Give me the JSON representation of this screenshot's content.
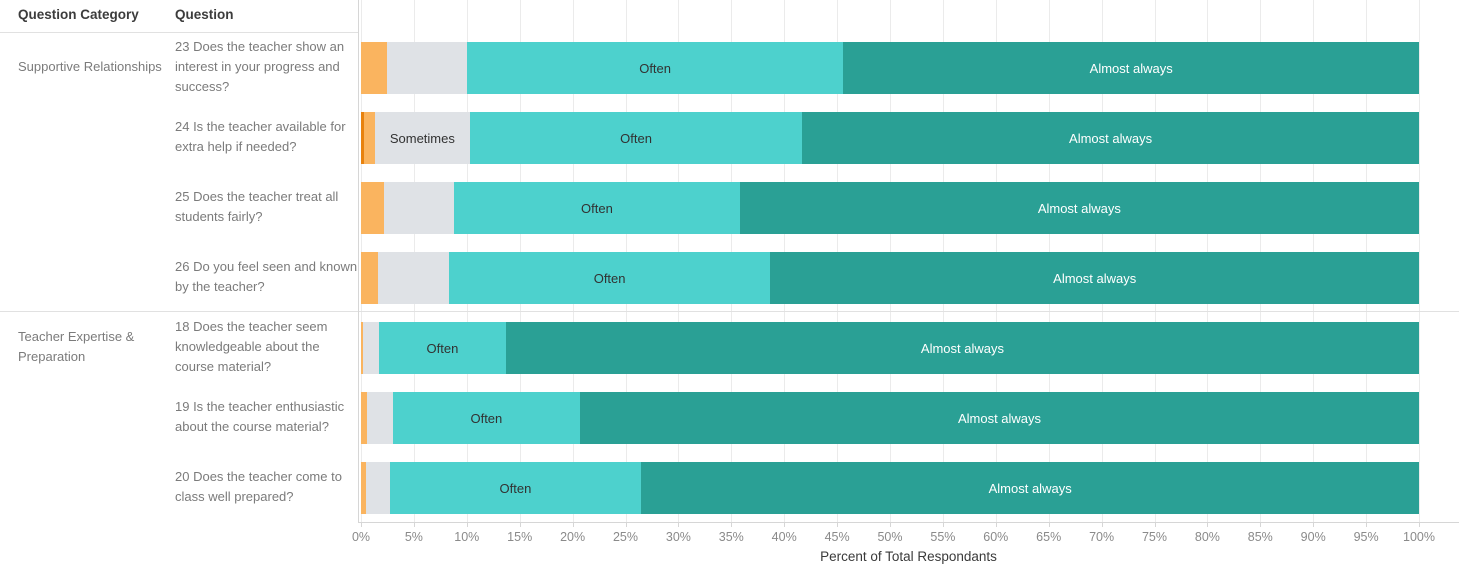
{
  "header": {
    "col1": "Question Category",
    "col2": "Question"
  },
  "chart_data": {
    "type": "bar",
    "subtype": "horizontal_stacked_100pct",
    "title": "",
    "xlabel": "Percent of Total Respondants",
    "ylabel": "",
    "xlim": [
      0,
      100
    ],
    "grid": true,
    "axis": {
      "title": "Percent of Total Respondants",
      "ticks": [
        "0%",
        "5%",
        "10%",
        "15%",
        "20%",
        "25%",
        "30%",
        "35%",
        "40%",
        "45%",
        "50%",
        "55%",
        "60%",
        "65%",
        "70%",
        "75%",
        "80%",
        "85%",
        "90%",
        "95%",
        "100%"
      ]
    },
    "palette": {
      "dark_orange": "#e8820e",
      "orange": "#fab45f",
      "gray": "#dfe2e6",
      "teal": "#4dd1cd",
      "dark_teal": "#2aa095"
    },
    "visible_segment_labels": [
      "Sometimes",
      "Often",
      "Almost always"
    ],
    "rows": [
      {
        "category": "Supportive Relationships",
        "question": "23 Does the teacher show an interest in your progress and success?",
        "group_end": false,
        "segments": [
          {
            "pct": 2.5,
            "color": "#fab45f",
            "label": ""
          },
          {
            "pct": 7.5,
            "color": "#dfe2e6",
            "label": ""
          },
          {
            "pct": 35.6,
            "color": "#4dd1cd",
            "label": "Often",
            "label_color": "#323232"
          },
          {
            "pct": 54.4,
            "color": "#2aa095",
            "label": "Almost always",
            "label_color": "#ffffff"
          }
        ]
      },
      {
        "category": "",
        "question": "24 Is the teacher available for extra help if needed?",
        "group_end": false,
        "segments": [
          {
            "pct": 0.3,
            "color": "#e8820e",
            "label": ""
          },
          {
            "pct": 1.0,
            "color": "#fab45f",
            "label": ""
          },
          {
            "pct": 9.0,
            "color": "#dfe2e6",
            "label": "Sometimes",
            "label_color": "#323232"
          },
          {
            "pct": 31.4,
            "color": "#4dd1cd",
            "label": "Often",
            "label_color": "#323232"
          },
          {
            "pct": 58.3,
            "color": "#2aa095",
            "label": "Almost always",
            "label_color": "#ffffff"
          }
        ]
      },
      {
        "category": "",
        "question": "25 Does the teacher treat all students fairly?",
        "group_end": false,
        "segments": [
          {
            "pct": 2.2,
            "color": "#fab45f",
            "label": ""
          },
          {
            "pct": 6.6,
            "color": "#dfe2e6",
            "label": ""
          },
          {
            "pct": 27.0,
            "color": "#4dd1cd",
            "label": "Often",
            "label_color": "#323232"
          },
          {
            "pct": 64.2,
            "color": "#2aa095",
            "label": "Almost always",
            "label_color": "#ffffff"
          }
        ]
      },
      {
        "category": "",
        "question": "26 Do you feel seen and known by the teacher?",
        "group_end": true,
        "segments": [
          {
            "pct": 1.6,
            "color": "#fab45f",
            "label": ""
          },
          {
            "pct": 6.7,
            "color": "#dfe2e6",
            "label": ""
          },
          {
            "pct": 30.4,
            "color": "#4dd1cd",
            "label": "Often",
            "label_color": "#323232"
          },
          {
            "pct": 61.3,
            "color": "#2aa095",
            "label": "Almost always",
            "label_color": "#ffffff"
          }
        ]
      },
      {
        "category": "Teacher Expertise & Preparation",
        "question": "18 Does the teacher seem knowledgeable about the course material?",
        "group_end": false,
        "segments": [
          {
            "pct": 0.2,
            "color": "#fab45f",
            "label": ""
          },
          {
            "pct": 1.5,
            "color": "#dfe2e6",
            "label": ""
          },
          {
            "pct": 12.0,
            "color": "#4dd1cd",
            "label": "Often",
            "label_color": "#323232"
          },
          {
            "pct": 86.3,
            "color": "#2aa095",
            "label": "Almost always",
            "label_color": "#ffffff"
          }
        ]
      },
      {
        "category": "",
        "question": "19 Is the teacher enthusiastic about the course material?",
        "group_end": false,
        "segments": [
          {
            "pct": 0.6,
            "color": "#fab45f",
            "label": ""
          },
          {
            "pct": 2.4,
            "color": "#dfe2e6",
            "label": ""
          },
          {
            "pct": 17.7,
            "color": "#4dd1cd",
            "label": "Often",
            "label_color": "#323232"
          },
          {
            "pct": 79.3,
            "color": "#2aa095",
            "label": "Almost always",
            "label_color": "#ffffff"
          }
        ]
      },
      {
        "category": "",
        "question": "20 Does the teacher come to class well prepared?",
        "group_end": false,
        "segments": [
          {
            "pct": 0.5,
            "color": "#fab45f",
            "label": ""
          },
          {
            "pct": 2.2,
            "color": "#dfe2e6",
            "label": ""
          },
          {
            "pct": 23.8,
            "color": "#4dd1cd",
            "label": "Often",
            "label_color": "#323232"
          },
          {
            "pct": 73.5,
            "color": "#2aa095",
            "label": "Almost always",
            "label_color": "#ffffff"
          }
        ]
      }
    ]
  }
}
